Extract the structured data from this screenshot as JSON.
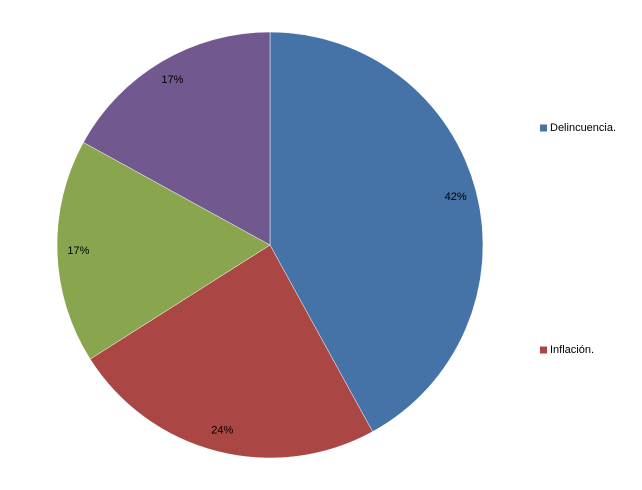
{
  "chart_data": {
    "type": "pie",
    "categories": [
      "Delincuencia.",
      "Inflación.",
      null,
      null
    ],
    "values": [
      42,
      24,
      17,
      17
    ],
    "value_labels": [
      "42%",
      "24%",
      "17%",
      "17%"
    ],
    "colors": [
      "#4572a7",
      "#aa4643",
      "#89a54e",
      "#71588f"
    ]
  }
}
